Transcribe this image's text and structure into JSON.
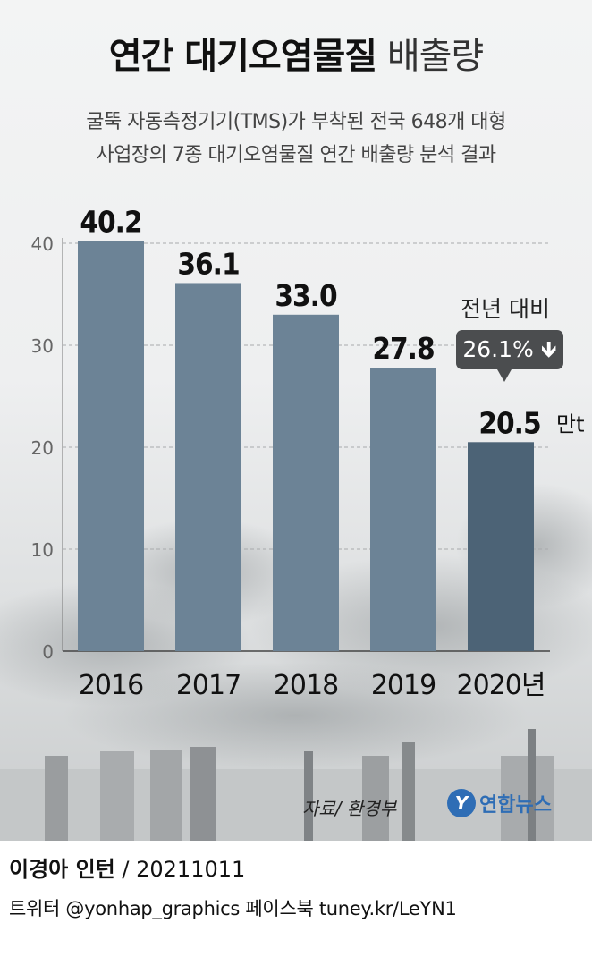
{
  "header": {
    "title_bold": "연간 대기오염물질",
    "title_light": "배출량",
    "subtitle_line1": "굴뚝 자동측정기기(TMS)가 부착된 전국 648개 대형",
    "subtitle_line2": "사업장의 7종 대기오염물질 연간 배출량 분석 결과"
  },
  "chart_data": {
    "type": "bar",
    "categories": [
      "2016",
      "2017",
      "2018",
      "2019",
      "2020년"
    ],
    "values": [
      40.2,
      36.1,
      33.0,
      27.8,
      20.5
    ],
    "value_labels": [
      "40.2",
      "36.1",
      "33.0",
      "27.8",
      "20.5"
    ],
    "unit_label": "만t",
    "yticks": [
      "40",
      "30",
      "20",
      "10",
      "0"
    ],
    "ylim": [
      0,
      40
    ],
    "grid": true,
    "bar_color": "#6c8396",
    "highlight_color": "#4c6376",
    "annotation_label": "전년 대비",
    "annotation_value": "26.1%",
    "annotation_arrow": "arrow-down-icon"
  },
  "footer": {
    "source": "자료/ 환경부",
    "logo_text": "연합뉴스",
    "logo_mark": "Y"
  },
  "credit": {
    "author": "이경아 인턴",
    "date": "/ 20211011",
    "social": "트위터 @yonhap_graphics  페이스북 tuney.kr/LeYN1"
  }
}
